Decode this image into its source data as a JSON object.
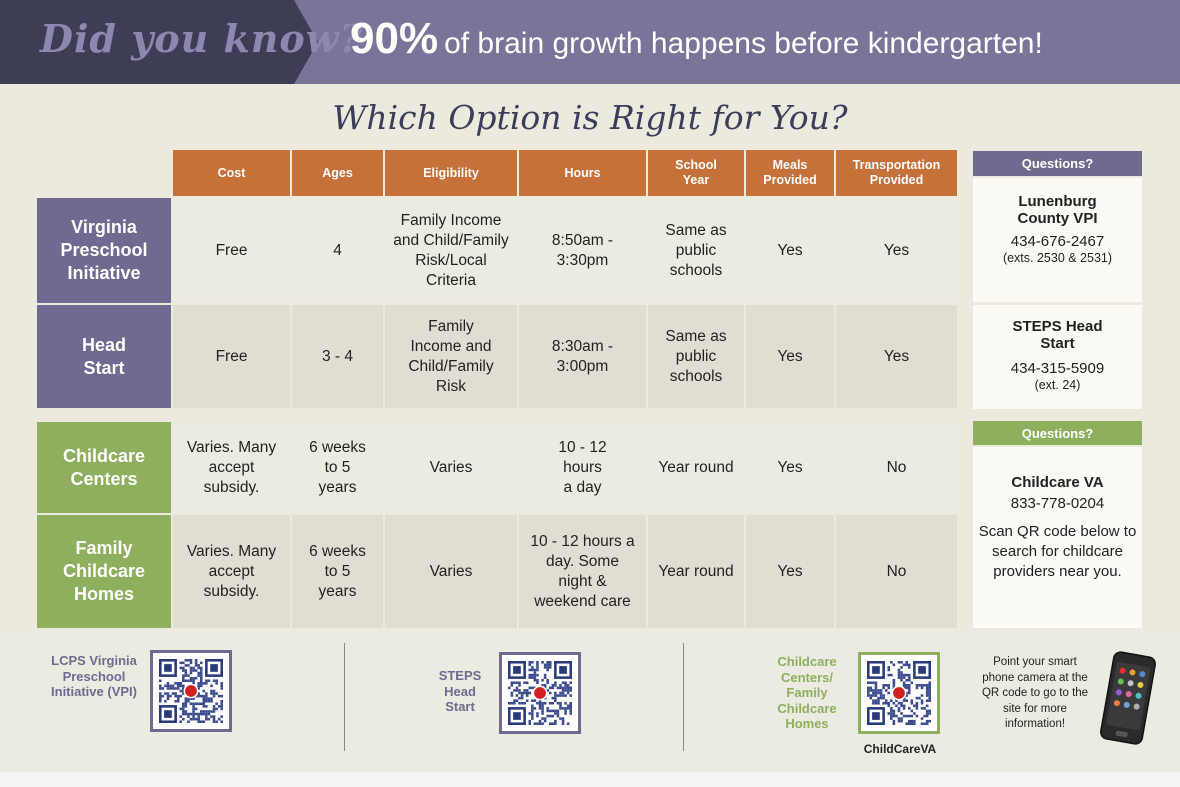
{
  "banner": {
    "did_you_know": "Did you know?",
    "stat": "90%",
    "stat_text": "of brain growth happens before kindergarten!"
  },
  "title": "Which Option is Right for You?",
  "columns": [
    "Cost",
    "Ages",
    "Eligibility",
    "Hours",
    "School Year",
    "Meals Provided",
    "Transportation Provided"
  ],
  "rows": [
    {
      "label": "Virginia Preschool Initiative",
      "cost": "Free",
      "ages": "4",
      "eligibility": "Family Income and Child/Family Risk/Local Criteria",
      "hours": "8:50am - 3:30pm",
      "school_year": "Same as public schools",
      "meals": "Yes",
      "transportation": "Yes"
    },
    {
      "label": "Head Start",
      "cost": "Free",
      "ages": "3 - 4",
      "eligibility": "Family Income and Child/Family Risk",
      "hours": "8:30am - 3:00pm",
      "school_year": "Same as public schools",
      "meals": "Yes",
      "transportation": "Yes"
    },
    {
      "label": "Childcare Centers",
      "cost": "Varies. Many accept subsidy.",
      "ages": "6 weeks to 5 years",
      "eligibility": "Varies",
      "hours": "10 - 12 hours a day",
      "school_year": "Year round",
      "meals": "Yes",
      "transportation": "No"
    },
    {
      "label": "Family Childcare Homes",
      "cost": "Varies. Many accept subsidy.",
      "ages": "6 weeks to 5 years",
      "eligibility": "Varies",
      "hours": "10 - 12 hours a day. Some night & weekend care",
      "school_year": "Year round",
      "meals": "Yes",
      "transportation": "No"
    }
  ],
  "questions": {
    "header": "Questions?",
    "lunenburg": {
      "name": "Lunenburg County VPI",
      "phone": "434-676-2467",
      "ext": "(exts. 2530 & 2531)"
    },
    "steps": {
      "name": "STEPS Head Start",
      "phone": "434-315-5909",
      "ext": "(ext. 24)"
    },
    "childcare": {
      "name": "Childcare VA",
      "phone": "833-778-0204",
      "note": "Scan QR code below to search for childcare providers near you."
    }
  },
  "footer": {
    "qr1_label": "LCPS Virginia Preschool Initiative (VPI)",
    "qr2_label": "STEPS Head Start",
    "qr3_label": "Childcare Centers/ Family Childcare Homes",
    "qr3_caption": "ChildCareVA",
    "phone_text": "Point your smart phone camera at the QR code to go to the site for more information!"
  },
  "colors": {
    "purple": "#6e6a90",
    "green": "#8daf5e",
    "orange": "#c6703a",
    "banner_dark": "#3d3d55"
  }
}
